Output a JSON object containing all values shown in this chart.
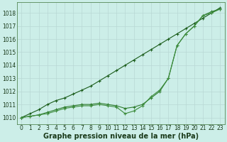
{
  "xlabel": "Graphe pression niveau de la mer (hPa)",
  "bg_color": "#cceee8",
  "grid_color": "#b8d8d4",
  "line_color_dark": "#1a5c1a",
  "line_color_mid": "#2e7d2e",
  "line_color_light": "#3d8c3d",
  "x": [
    0,
    1,
    2,
    3,
    4,
    5,
    6,
    7,
    8,
    9,
    10,
    11,
    12,
    13,
    14,
    15,
    16,
    17,
    18,
    19,
    20,
    21,
    22,
    23
  ],
  "series1": [
    1010.0,
    1010.3,
    1010.6,
    1011.0,
    1011.3,
    1011.5,
    1011.8,
    1012.1,
    1012.4,
    1012.8,
    1013.2,
    1013.6,
    1014.0,
    1014.4,
    1014.8,
    1015.2,
    1015.6,
    1016.0,
    1016.4,
    1016.8,
    1017.2,
    1017.6,
    1018.0,
    1018.4
  ],
  "series2": [
    1010.0,
    1010.1,
    1010.2,
    1010.4,
    1010.6,
    1010.8,
    1010.9,
    1011.0,
    1011.0,
    1011.1,
    1011.0,
    1010.9,
    1010.7,
    1010.8,
    1011.0,
    1011.5,
    1012.0,
    1013.0,
    1015.5,
    1016.4,
    1017.0,
    1017.8,
    1018.1,
    1018.3
  ],
  "series3": [
    1010.0,
    1010.1,
    1010.2,
    1010.3,
    1010.5,
    1010.7,
    1010.8,
    1010.9,
    1010.9,
    1011.0,
    1010.9,
    1010.8,
    1010.3,
    1010.5,
    1010.9,
    1011.6,
    1012.1,
    1013.0,
    1015.5,
    1016.4,
    1017.0,
    1017.8,
    1018.0,
    1018.3
  ],
  "ylim_min": 1009.5,
  "ylim_max": 1018.8,
  "yticks": [
    1010,
    1011,
    1012,
    1013,
    1014,
    1015,
    1016,
    1017,
    1018
  ],
  "xticks": [
    0,
    1,
    2,
    3,
    4,
    5,
    6,
    7,
    8,
    9,
    10,
    11,
    12,
    13,
    14,
    15,
    16,
    17,
    18,
    19,
    20,
    21,
    22,
    23
  ],
  "markersize": 3,
  "linewidth": 0.8,
  "xlabel_fontsize": 7,
  "tick_fontsize": 5.5
}
